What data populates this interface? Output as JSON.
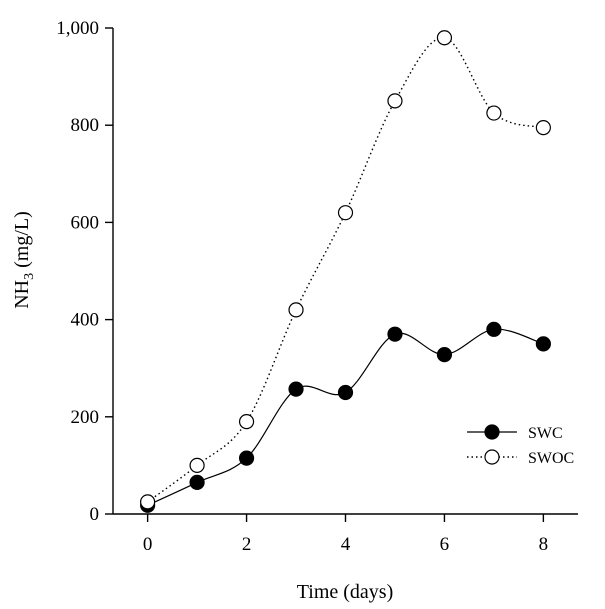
{
  "chart_data": {
    "type": "line",
    "title": "",
    "xlabel": "Time (days)",
    "ylabel": {
      "prefix": "NH",
      "subscript": "3",
      "suffix": " (mg/L)"
    },
    "xlim": [
      -0.7,
      8.7
    ],
    "ylim": [
      0,
      1000
    ],
    "xticks": [
      0,
      2,
      4,
      6,
      8
    ],
    "xtick_labels": [
      "0",
      "2",
      "4",
      "6",
      "8"
    ],
    "yticks": [
      0,
      200,
      400,
      600,
      800,
      1000
    ],
    "ytick_labels": [
      "0",
      "200",
      "400",
      "600",
      "800",
      "1,000"
    ],
    "grid": false,
    "legend_position": "lower-right",
    "series": [
      {
        "name": "SWC",
        "marker": "filled-circle",
        "line_style": "solid",
        "color": "#000000",
        "x": [
          0,
          1,
          2,
          3,
          4,
          5,
          6,
          7,
          8
        ],
        "y": [
          18,
          65,
          115,
          257,
          250,
          370,
          328,
          380,
          350
        ]
      },
      {
        "name": "SWOC",
        "marker": "open-circle",
        "line_style": "dotted",
        "color": "#000000",
        "x": [
          0,
          1,
          2,
          3,
          4,
          5,
          6,
          7,
          8
        ],
        "y": [
          25,
          100,
          190,
          420,
          620,
          850,
          980,
          825,
          795
        ]
      }
    ]
  }
}
